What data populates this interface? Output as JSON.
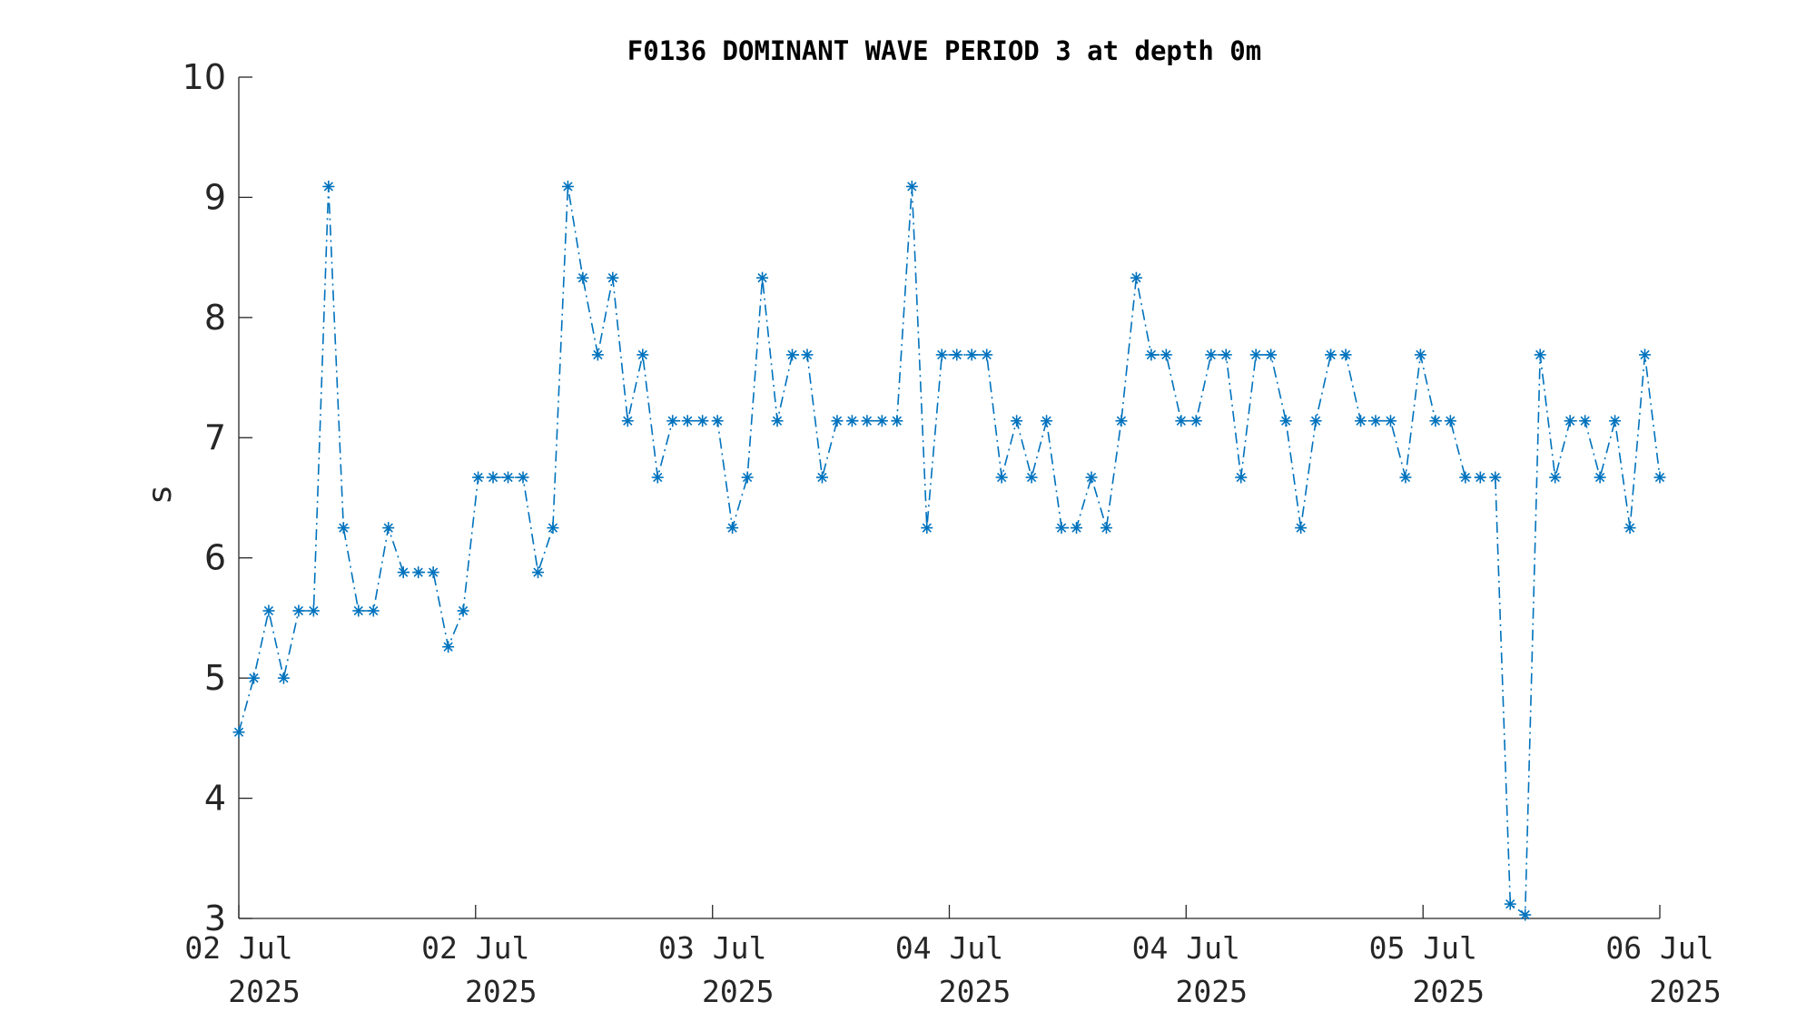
{
  "chart_data": {
    "type": "line",
    "title": "F0136 DOMINANT WAVE PERIOD 3 at depth 0m",
    "xlabel": "",
    "ylabel": "s",
    "ylim": [
      3,
      10
    ],
    "yticks": [
      3,
      4,
      5,
      6,
      7,
      8,
      9,
      10
    ],
    "xlim": [
      0,
      95
    ],
    "xticks": [
      {
        "x": 0,
        "label1": "02 Jul",
        "label2": "2025"
      },
      {
        "x": 15.83,
        "label1": "02 Jul",
        "label2": "2025"
      },
      {
        "x": 31.67,
        "label1": "03 Jul",
        "label2": "2025"
      },
      {
        "x": 47.5,
        "label1": "04 Jul",
        "label2": "2025"
      },
      {
        "x": 63.33,
        "label1": "04 Jul",
        "label2": "2025"
      },
      {
        "x": 79.17,
        "label1": "05 Jul",
        "label2": "2025"
      },
      {
        "x": 95,
        "label1": "06 Jul",
        "label2": "2025"
      }
    ],
    "grid": false,
    "legend": "none",
    "series": [
      {
        "color": "#0072bd",
        "line_style": "dash-dot",
        "marker": "asterisk",
        "y": [
          4.55,
          5.0,
          5.56,
          5.0,
          5.56,
          5.56,
          9.09,
          6.25,
          5.56,
          5.56,
          6.25,
          5.88,
          5.88,
          5.88,
          5.26,
          5.56,
          6.67,
          6.67,
          6.67,
          6.67,
          5.88,
          6.25,
          9.09,
          8.33,
          7.69,
          8.33,
          7.14,
          7.69,
          6.67,
          7.14,
          7.14,
          7.14,
          7.14,
          6.25,
          6.67,
          8.33,
          7.14,
          7.69,
          7.69,
          6.67,
          7.14,
          7.14,
          7.14,
          7.14,
          7.14,
          9.09,
          6.25,
          7.69,
          7.69,
          7.69,
          7.69,
          6.67,
          7.14,
          6.67,
          7.14,
          6.25,
          6.25,
          6.67,
          6.25,
          7.14,
          8.33,
          7.69,
          7.69,
          7.14,
          7.14,
          7.69,
          7.69,
          6.67,
          7.69,
          7.69,
          7.14,
          6.25,
          7.14,
          7.69,
          7.69,
          7.14,
          7.14,
          7.14,
          6.67,
          7.69,
          7.14,
          7.14,
          6.67,
          6.67,
          6.67,
          3.12,
          3.03,
          7.69,
          6.67,
          7.14,
          7.14,
          6.67,
          7.14,
          6.25,
          7.69,
          6.67
        ]
      }
    ]
  }
}
